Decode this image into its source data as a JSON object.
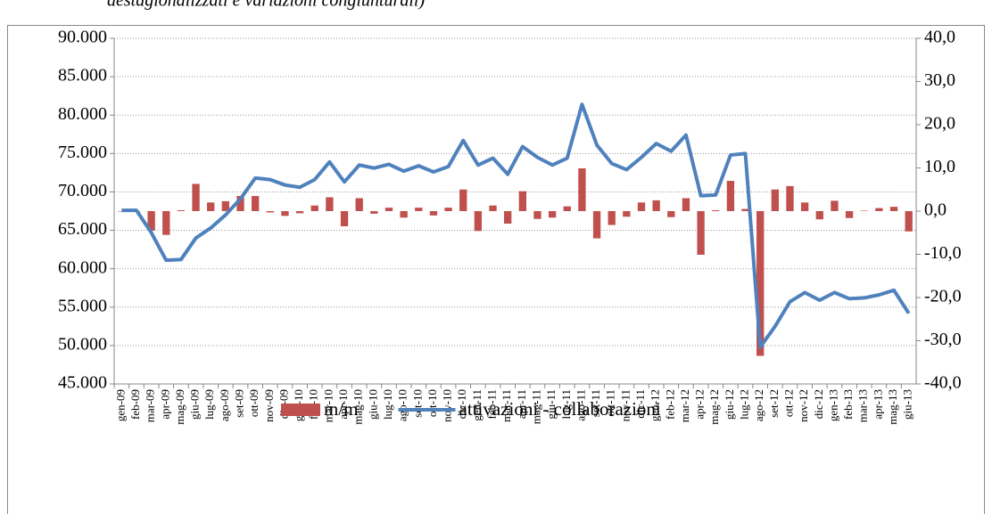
{
  "chart_data": {
    "type": "combo",
    "title": "destagionalizzati e variazioni congiunturali)",
    "categories": [
      "gen-09",
      "feb-09",
      "mar-09",
      "apr-09",
      "mag-09",
      "giu-09",
      "lug-09",
      "ago-09",
      "set-09",
      "ott-09",
      "nov-09",
      "dic-09",
      "gen-10",
      "feb-10",
      "mar-10",
      "apr-10",
      "mag-10",
      "giu-10",
      "lug-10",
      "ago-10",
      "set-10",
      "ott-10",
      "nov-10",
      "dic-10",
      "gen-11",
      "feb-11",
      "mar-11",
      "apr-11",
      "mag-11",
      "giu-11",
      "lug-11",
      "ago-11",
      "set-11",
      "ott-11",
      "nov-11",
      "dic-11",
      "gen-12",
      "feb-12",
      "mar-12",
      "apr-12",
      "mag-12",
      "giu-12",
      "lug-12",
      "ago-12",
      "set-12",
      "ott-12",
      "nov-12",
      "dic-12",
      "gen-13",
      "feb-13",
      "mar-13",
      "apr-13",
      "mag-13",
      "giu-13"
    ],
    "series": [
      {
        "name": "m/m",
        "type": "bar",
        "axis": "y2",
        "color": "#c0504d",
        "values": [
          0,
          0,
          -4.5,
          -5.5,
          0.2,
          6.3,
          2.0,
          2.3,
          3.5,
          3.5,
          -0.3,
          -1.1,
          -0.5,
          1.3,
          3.2,
          -3.5,
          3.0,
          -0.6,
          0.8,
          -1.5,
          0.8,
          -1.0,
          0.8,
          5.0,
          -4.6,
          1.3,
          -2.9,
          4.6,
          -1.8,
          -1.5,
          1.1,
          9.9,
          -6.3,
          -3.2,
          -1.3,
          2.0,
          2.5,
          -1.4,
          3.0,
          -10.1,
          0.2,
          7.0,
          0.5,
          -33.5,
          5.0,
          5.8,
          2.0,
          -1.9,
          2.4,
          -1.6,
          0.1,
          0.7,
          1.0,
          -4.7
        ]
      },
      {
        "name": "attivazioni - collaborazioni",
        "type": "line",
        "color": "#4f81bd",
        "values": [
          67600,
          67600,
          64700,
          61100,
          61200,
          64000,
          65300,
          67000,
          69100,
          71800,
          71600,
          70900,
          70600,
          71600,
          73900,
          71300,
          73500,
          73100,
          73600,
          72700,
          73400,
          72600,
          73300,
          76700,
          73500,
          74400,
          72300,
          75900,
          74500,
          73500,
          74400,
          81400,
          76100,
          73700,
          72900,
          74500,
          76300,
          75300,
          77400,
          69500,
          69600,
          74800,
          75000,
          49800,
          52500,
          55700,
          56900,
          55900,
          56900,
          56100,
          56200,
          56600,
          57200,
          54200
        ]
      }
    ],
    "ylim": [
      45000,
      90000
    ],
    "yticks": [
      {
        "value": 45000,
        "label": "45.000"
      },
      {
        "value": 50000,
        "label": "50.000"
      },
      {
        "value": 55000,
        "label": "55.000"
      },
      {
        "value": 60000,
        "label": "60.000"
      },
      {
        "value": 65000,
        "label": "65.000"
      },
      {
        "value": 70000,
        "label": "70.000"
      },
      {
        "value": 75000,
        "label": "75.000"
      },
      {
        "value": 80000,
        "label": "80.000"
      },
      {
        "value": 85000,
        "label": "85.000"
      },
      {
        "value": 90000,
        "label": "90.000"
      }
    ],
    "y2lim": [
      -40,
      40
    ],
    "y2ticks": [
      {
        "value": -40,
        "label": "-40,0"
      },
      {
        "value": -30,
        "label": "-30,0"
      },
      {
        "value": -20,
        "label": "-20,0"
      },
      {
        "value": -10,
        "label": "-10,0"
      },
      {
        "value": 0,
        "label": "0,0"
      },
      {
        "value": 10,
        "label": "10,0"
      },
      {
        "value": 20,
        "label": "20,0"
      },
      {
        "value": 30,
        "label": "30,0"
      },
      {
        "value": 40,
        "label": "40,0"
      }
    ],
    "grid": true,
    "legend": "bottom"
  }
}
